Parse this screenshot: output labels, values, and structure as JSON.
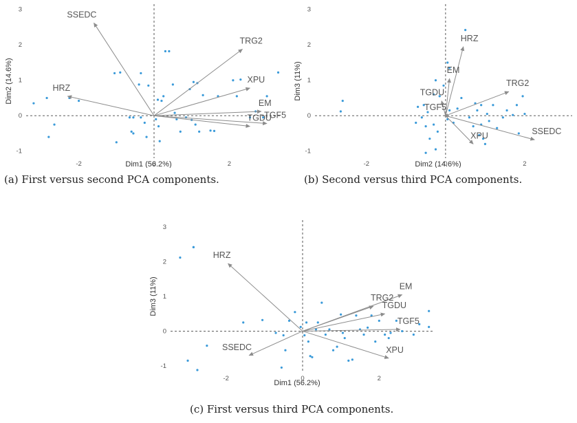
{
  "chart_data": [
    {
      "type": "scatter",
      "subtype": "pca-biplot",
      "caption": "(a) First versus second PCA components.",
      "xlabel": "Dim1 (56.2%)",
      "ylabel": "Dim2 (14.6%)",
      "xlim": [
        -3.4,
        3.4
      ],
      "ylim": [
        -1.2,
        3.15
      ],
      "xticks": [
        -2,
        0,
        2
      ],
      "yticks": [
        -1,
        0,
        1,
        2,
        3
      ],
      "point_color": "#3a9ad9",
      "arrow_color": "#8c8c8c",
      "points": [
        [
          -3.2,
          0.35
        ],
        [
          -2.85,
          0.5
        ],
        [
          -2.8,
          -0.6
        ],
        [
          -2.65,
          -0.25
        ],
        [
          -2.25,
          0.5
        ],
        [
          -2.0,
          0.42
        ],
        [
          -1.05,
          1.2
        ],
        [
          -0.9,
          1.22
        ],
        [
          -1.0,
          -0.75
        ],
        [
          -0.65,
          -0.05
        ],
        [
          -0.55,
          -0.05
        ],
        [
          -0.6,
          -0.45
        ],
        [
          -0.55,
          -0.5
        ],
        [
          -0.4,
          0.88
        ],
        [
          -0.35,
          -0.05
        ],
        [
          -0.25,
          -0.2
        ],
        [
          -0.2,
          -0.6
        ],
        [
          -0.15,
          0.85
        ],
        [
          -0.35,
          1.2
        ],
        [
          0.05,
          -0.1
        ],
        [
          0.1,
          0.45
        ],
        [
          0.12,
          -0.3
        ],
        [
          0.15,
          -0.72
        ],
        [
          0.2,
          0.42
        ],
        [
          0.25,
          0.55
        ],
        [
          0.3,
          1.82
        ],
        [
          0.4,
          1.82
        ],
        [
          0.5,
          0.88
        ],
        [
          0.55,
          0.08
        ],
        [
          0.6,
          -0.1
        ],
        [
          0.7,
          -0.45
        ],
        [
          0.85,
          -0.05
        ],
        [
          0.95,
          0.75
        ],
        [
          1.0,
          -0.12
        ],
        [
          1.05,
          0.95
        ],
        [
          1.1,
          -0.25
        ],
        [
          1.15,
          0.92
        ],
        [
          1.2,
          -0.45
        ],
        [
          1.3,
          0.58
        ],
        [
          1.5,
          -0.42
        ],
        [
          1.6,
          -0.43
        ],
        [
          1.7,
          0.55
        ],
        [
          2.1,
          1.0
        ],
        [
          2.2,
          0.55
        ],
        [
          2.3,
          1.02
        ],
        [
          2.55,
          -0.05
        ],
        [
          2.7,
          0.12
        ],
        [
          2.9,
          -0.05
        ],
        [
          3.0,
          0.55
        ],
        [
          3.3,
          1.22
        ]
      ],
      "arrows": [
        {
          "label": "SSEDC",
          "x": -1.6,
          "y": 2.62
        },
        {
          "label": "TRG2",
          "x": 2.35,
          "y": 1.88
        },
        {
          "label": "XPU",
          "x": 2.55,
          "y": 0.78
        },
        {
          "label": "HRZ",
          "x": -2.3,
          "y": 0.55
        },
        {
          "label": "EM",
          "x": 2.85,
          "y": 0.12
        },
        {
          "label": "TGF5",
          "x": 3.0,
          "y": -0.22
        },
        {
          "label": "TGDU",
          "x": 2.55,
          "y": -0.3
        }
      ]
    },
    {
      "type": "scatter",
      "subtype": "pca-biplot",
      "caption": "(b) Second versus third PCA components.",
      "xlabel": "Dim2 (14.6%)",
      "ylabel": "Dim3 (11%)",
      "xlim": [
        -3.3,
        3.2
      ],
      "ylim": [
        -1.2,
        3.15
      ],
      "xticks": [
        -2,
        0,
        2
      ],
      "yticks": [
        -1,
        0,
        1,
        2,
        3
      ],
      "point_color": "#3a9ad9",
      "arrow_color": "#8c8c8c",
      "points": [
        [
          -2.6,
          0.42
        ],
        [
          -2.65,
          0.12
        ],
        [
          0.5,
          2.42
        ],
        [
          0.05,
          1.5
        ],
        [
          0.1,
          1.35
        ],
        [
          -0.25,
          1.0
        ],
        [
          -0.3,
          0.6
        ],
        [
          -0.55,
          0.3
        ],
        [
          -0.7,
          0.25
        ],
        [
          -0.45,
          0.1
        ],
        [
          -0.6,
          -0.05
        ],
        [
          -0.75,
          -0.2
        ],
        [
          -0.5,
          -0.3
        ],
        [
          -0.3,
          -0.25
        ],
        [
          -0.2,
          -0.45
        ],
        [
          -0.4,
          -0.65
        ],
        [
          -0.5,
          -1.05
        ],
        [
          -0.25,
          -0.95
        ],
        [
          0.05,
          -0.1
        ],
        [
          0.1,
          0.15
        ],
        [
          0.2,
          -0.2
        ],
        [
          0.3,
          0.2
        ],
        [
          0.4,
          0.5
        ],
        [
          0.6,
          -0.05
        ],
        [
          0.7,
          -0.3
        ],
        [
          0.75,
          0.35
        ],
        [
          0.8,
          0.15
        ],
        [
          0.85,
          -0.55
        ],
        [
          0.9,
          0.3
        ],
        [
          0.95,
          -0.65
        ],
        [
          1.0,
          -0.8
        ],
        [
          0.9,
          -0.25
        ],
        [
          1.05,
          0.05
        ],
        [
          1.1,
          -0.15
        ],
        [
          1.2,
          0.3
        ],
        [
          1.3,
          -0.35
        ],
        [
          1.45,
          -0.05
        ],
        [
          1.55,
          0.15
        ],
        [
          1.7,
          0.02
        ],
        [
          1.8,
          0.3
        ],
        [
          1.85,
          -0.5
        ],
        [
          1.95,
          0.55
        ],
        [
          2.0,
          0.05
        ],
        [
          -0.15,
          0.55
        ],
        [
          -0.05,
          0.85
        ]
      ],
      "arrows": [
        {
          "label": "HRZ",
          "x": 0.45,
          "y": 1.95
        },
        {
          "label": "EM",
          "x": 0.1,
          "y": 1.05
        },
        {
          "label": "TRG2",
          "x": 1.6,
          "y": 0.68
        },
        {
          "label": "TGDU",
          "x": -0.1,
          "y": 0.42
        },
        {
          "label": "TGF5",
          "x": -0.05,
          "y": 0.0
        },
        {
          "label": "SSEDC",
          "x": 2.25,
          "y": -0.68
        },
        {
          "label": "XPU",
          "x": 0.7,
          "y": -0.8
        }
      ]
    },
    {
      "type": "scatter",
      "subtype": "pca-biplot",
      "caption": "(c) First versus third PCA components.",
      "xlabel": "Dim1 (56.2%)",
      "ylabel": "Dim3 (11%)",
      "xlim": [
        -3.45,
        3.45
      ],
      "ylim": [
        -1.2,
        3.2
      ],
      "xticks": [
        -2,
        0,
        2
      ],
      "yticks": [
        -1,
        0,
        1,
        2,
        3
      ],
      "point_color": "#3a9ad9",
      "arrow_color": "#8c8c8c",
      "points": [
        [
          -3.2,
          2.12
        ],
        [
          -2.85,
          2.42
        ],
        [
          -2.85,
          2.42
        ],
        [
          -3.0,
          -0.85
        ],
        [
          -2.75,
          -1.12
        ],
        [
          -2.5,
          -0.42
        ],
        [
          -1.55,
          0.25
        ],
        [
          -1.05,
          0.32
        ],
        [
          -0.7,
          -0.05
        ],
        [
          -0.5,
          -0.12
        ],
        [
          -0.55,
          -1.05
        ],
        [
          -0.45,
          -0.55
        ],
        [
          -0.35,
          0.3
        ],
        [
          -0.2,
          0.55
        ],
        [
          -0.05,
          0.12
        ],
        [
          0.05,
          -0.12
        ],
        [
          0.1,
          0.25
        ],
        [
          0.15,
          -0.3
        ],
        [
          0.2,
          -0.72
        ],
        [
          0.25,
          -0.75
        ],
        [
          0.35,
          0.05
        ],
        [
          0.4,
          0.25
        ],
        [
          0.5,
          0.82
        ],
        [
          0.6,
          -0.1
        ],
        [
          0.7,
          0.05
        ],
        [
          0.8,
          -0.55
        ],
        [
          0.9,
          -0.45
        ],
        [
          1.0,
          0.48
        ],
        [
          1.05,
          -0.05
        ],
        [
          1.1,
          -0.2
        ],
        [
          1.2,
          -0.85
        ],
        [
          1.3,
          -0.82
        ],
        [
          1.4,
          0.45
        ],
        [
          1.5,
          0.05
        ],
        [
          1.6,
          -0.1
        ],
        [
          1.7,
          0.1
        ],
        [
          1.8,
          0.45
        ],
        [
          1.9,
          -0.3
        ],
        [
          2.0,
          0.3
        ],
        [
          2.15,
          -0.1
        ],
        [
          2.25,
          -0.2
        ],
        [
          2.3,
          -0.05
        ],
        [
          2.45,
          0.3
        ],
        [
          2.6,
          0.0
        ],
        [
          2.9,
          -0.1
        ],
        [
          3.05,
          0.2
        ],
        [
          3.3,
          0.58
        ],
        [
          3.3,
          0.12
        ]
      ],
      "arrows": [
        {
          "label": "HRZ",
          "x": -1.95,
          "y": 1.95
        },
        {
          "label": "EM",
          "x": 2.6,
          "y": 1.05
        },
        {
          "label": "TRG2",
          "x": 1.85,
          "y": 0.72
        },
        {
          "label": "TGDU",
          "x": 2.15,
          "y": 0.5
        },
        {
          "label": "TGF5",
          "x": 2.55,
          "y": 0.05
        },
        {
          "label": "SSEDC",
          "x": -1.4,
          "y": -0.7
        },
        {
          "label": "XPU",
          "x": 2.25,
          "y": -0.78
        }
      ]
    }
  ]
}
